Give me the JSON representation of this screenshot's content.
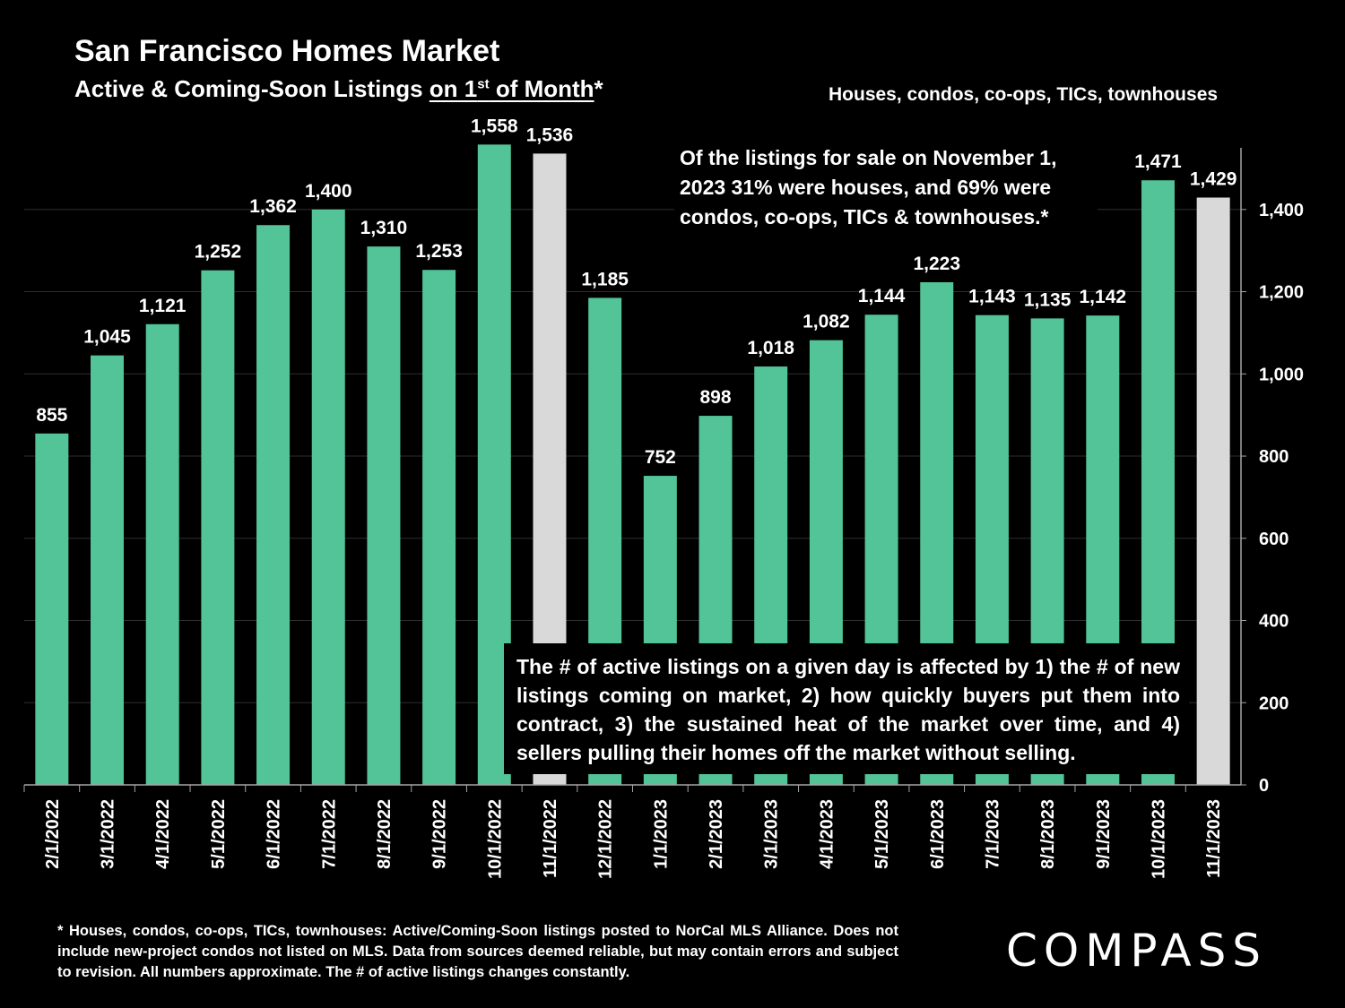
{
  "header": {
    "title": "San Francisco Homes Market",
    "subtitle_prefix": "Active & Coming-Soon Listings ",
    "subtitle_underlined": "on 1",
    "subtitle_sup": "st",
    "subtitle_underlined_end": " of Month",
    "subtitle_suffix": "*",
    "scope": "Houses, condos, co-ops, TICs, townhouses"
  },
  "annotations": {
    "top_note": "Of the listings for sale on November 1, 2023 31% were houses, and 69% were condos, co-ops, TICs & townhouses.*",
    "box_note": "The # of active listings on a given day is affected by 1) the # of new listings coming on market, 2) how quickly buyers put them into contract, 3) the sustained heat of the market over time, and 4) sellers pulling their homes off the market without selling."
  },
  "footnote": "* Houses, condos, co-ops, TICs, townhouses: Active/Coming-Soon listings posted to NorCal MLS Alliance. Does not include new-project condos not listed on MLS. Data from sources deemed reliable, but may contain errors and subject to revision. All numbers approximate. The # of active listings changes constantly.",
  "brand": {
    "logo_text": "COMPASS"
  },
  "colors": {
    "bar": "#52c497",
    "highlight_bar": "#d9d9d9",
    "background": "#000000",
    "axis": "#a6a6a6"
  },
  "chart_data": {
    "type": "bar",
    "title": "San Francisco Homes Market",
    "xlabel": "",
    "ylabel": "",
    "ylim": [
      0,
      1550
    ],
    "yticks": [
      0,
      200,
      400,
      600,
      800,
      1000,
      1200,
      1400
    ],
    "ytick_labels": [
      "0",
      "200",
      "400",
      "600",
      "800",
      "1,000",
      "1,200",
      "1,400"
    ],
    "y_axis_side": "right",
    "categories": [
      "2/1/2022",
      "3/1/2022",
      "4/1/2022",
      "5/1/2022",
      "6/1/2022",
      "7/1/2022",
      "8/1/2022",
      "9/1/2022",
      "10/1/2022",
      "11/1/2022",
      "12/1/2022",
      "1/1/2023",
      "2/1/2023",
      "3/1/2023",
      "4/1/2023",
      "5/1/2023",
      "6/1/2023",
      "7/1/2023",
      "8/1/2023",
      "9/1/2023",
      "10/1/2023",
      "11/1/2023"
    ],
    "values": [
      855,
      1045,
      1121,
      1252,
      1362,
      1400,
      1310,
      1253,
      1558,
      1536,
      1185,
      752,
      898,
      1018,
      1082,
      1144,
      1223,
      1143,
      1135,
      1142,
      1471,
      1429
    ],
    "value_labels": [
      "855",
      "1,045",
      "1,121",
      "1,252",
      "1,362",
      "1,400",
      "1,310",
      "1,253",
      "1,558",
      "1,536",
      "1,185",
      "752",
      "898",
      "1,018",
      "1,082",
      "1,144",
      "1,223",
      "1,143",
      "1,135",
      "1,142",
      "1,471",
      "1,429"
    ],
    "highlighted": [
      "11/1/2022",
      "11/1/2023"
    ],
    "grid": true
  }
}
